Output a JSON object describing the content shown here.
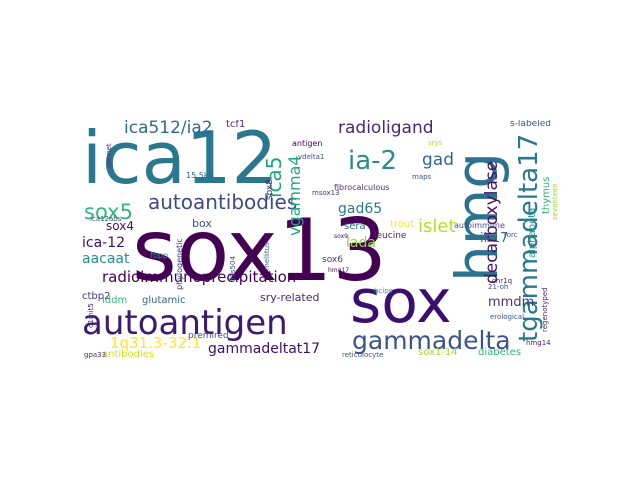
{
  "words": [
    {
      "text": "sox13",
      "color": "#440154"
    },
    {
      "text": "ica12",
      "color": "#2a788e"
    },
    {
      "text": "sox",
      "color": "#3b0f70"
    },
    {
      "text": "hmg",
      "color": "#2c728e"
    },
    {
      "text": "autoantigen",
      "color": "#3e1a6e"
    },
    {
      "text": "gammadelta",
      "color": "#3b528b"
    },
    {
      "text": "tgammadelta17",
      "color": "#2a788e"
    },
    {
      "text": "ia-2",
      "color": "#2c8a8a"
    },
    {
      "text": "ica512/ia2",
      "color": "#31688e"
    },
    {
      "text": "radioligand",
      "color": "#482878"
    },
    {
      "text": "autoantibodies",
      "color": "#3e4a89"
    },
    {
      "text": "sox5",
      "color": "#35b779"
    },
    {
      "text": "ica5",
      "color": "#20a486"
    },
    {
      "text": "vgamma4",
      "color": "#22a884"
    },
    {
      "text": "gad",
      "color": "#31688e"
    },
    {
      "text": "islet",
      "color": "#b5de2b"
    },
    {
      "text": "gad65",
      "color": "#2a788e"
    },
    {
      "text": "decarboxylase",
      "color": "#471164"
    },
    {
      "text": "radioimmunoprecipitation",
      "color": "#440154"
    },
    {
      "text": "1q31.3-32.1",
      "color": "#fde725"
    },
    {
      "text": "gammadeltat17",
      "color": "#3b0f70"
    },
    {
      "text": "ica-12",
      "color": "#3b0f70"
    },
    {
      "text": "aacaat",
      "color": "#21918c"
    },
    {
      "text": "sox4",
      "color": "#471164"
    },
    {
      "text": "lada",
      "color": "#90d743"
    },
    {
      "text": "il-17",
      "color": "#31688e"
    },
    {
      "text": "mmdm",
      "color": "#46327e"
    },
    {
      "text": "tcf1",
      "color": "#472d7b"
    },
    {
      "text": "box",
      "color": "#3b528b"
    },
    {
      "text": "ctbp2",
      "color": "#443983"
    },
    {
      "text": "iddm",
      "color": "#35b779"
    },
    {
      "text": "glutamic",
      "color": "#31688e"
    },
    {
      "text": "sry-related",
      "color": "#482878"
    },
    {
      "text": "antibodies",
      "color": "#d2e21b"
    },
    {
      "text": "premired",
      "color": "#3b528b"
    },
    {
      "text": "sox1-14",
      "color": "#a0da39"
    },
    {
      "text": "diabetes",
      "color": "#35b779"
    },
    {
      "text": "sox6",
      "color": "#443983"
    },
    {
      "text": "trout",
      "color": "#fde725"
    },
    {
      "text": "sera",
      "color": "#31688e"
    },
    {
      "text": "leucine",
      "color": "#482878"
    },
    {
      "text": "sox8",
      "color": "#482878"
    },
    {
      "text": "antigen",
      "color": "#440154"
    },
    {
      "text": "vdelta1",
      "color": "#3b528b"
    },
    {
      "text": "fibrocalculous",
      "color": "#46327e"
    },
    {
      "text": "autoimmune",
      "color": "#3b528b"
    },
    {
      "text": "alphabeta",
      "color": "#21918c"
    },
    {
      "text": "thymus",
      "color": "#35b779"
    },
    {
      "text": "s-labeled",
      "color": "#3b528b"
    },
    {
      "text": "seventeen",
      "color": "#a0da39"
    },
    {
      "text": "rorc",
      "color": "#3b528b"
    },
    {
      "text": "hmg14",
      "color": "#481a6c"
    },
    {
      "text": "reticulocyte",
      "color": "#3b528b"
    },
    {
      "text": "gpa33",
      "color": "#472d7b"
    },
    {
      "text": "fbpp",
      "color": "#21918c"
    },
    {
      "text": "d1s504",
      "color": "#3b528b"
    },
    {
      "text": "mellitus",
      "color": "#31688e"
    },
    {
      "text": "phylogenetic",
      "color": "#46327e"
    },
    {
      "text": "15.5kb",
      "color": "#31688e"
    },
    {
      "text": "gennet",
      "color": "#443983"
    },
    {
      "text": "ica12abs",
      "color": "#3b528b"
    },
    {
      "text": "sox9",
      "color": "#3b0f70"
    },
    {
      "text": "hmg17",
      "color": "#3b0f70"
    },
    {
      "text": "hcips",
      "color": "#20a486"
    },
    {
      "text": "chr1q",
      "color": "#472d7b"
    },
    {
      "text": "21-oh",
      "color": "#3b528b"
    },
    {
      "text": "maps",
      "color": "#3b528b"
    },
    {
      "text": "msox13",
      "color": "#443983"
    },
    {
      "text": "srys",
      "color": "#b5de2b"
    },
    {
      "text": "erological",
      "color": "#3b528b"
    },
    {
      "text": "regenotyped",
      "color": "#482878"
    },
    {
      "text": "d1mit5",
      "color": "#482878"
    }
  ]
}
